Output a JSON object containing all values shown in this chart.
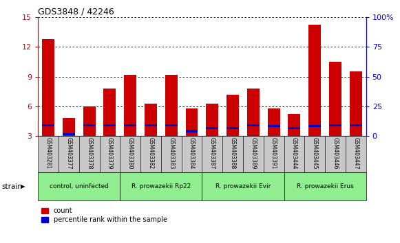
{
  "title": "GDS3848 / 42246",
  "samples": [
    "GSM403281",
    "GSM403377",
    "GSM403378",
    "GSM403379",
    "GSM403380",
    "GSM403382",
    "GSM403383",
    "GSM403384",
    "GSM403387",
    "GSM403388",
    "GSM403389",
    "GSM403391",
    "GSM403444",
    "GSM403445",
    "GSM403446",
    "GSM403447"
  ],
  "red_values": [
    12.8,
    4.8,
    6.0,
    7.8,
    9.2,
    6.3,
    9.2,
    5.8,
    6.3,
    7.2,
    7.8,
    5.8,
    5.2,
    14.2,
    10.5,
    9.5
  ],
  "blue_values": [
    4.1,
    3.2,
    4.1,
    4.1,
    4.1,
    4.1,
    4.1,
    3.5,
    3.8,
    3.8,
    4.1,
    4.0,
    3.8,
    4.0,
    4.1,
    4.1
  ],
  "ylim_left": [
    3,
    15
  ],
  "ylim_right": [
    0,
    100
  ],
  "yticks_left": [
    3,
    6,
    9,
    12,
    15
  ],
  "yticks_right": [
    0,
    25,
    50,
    75,
    100
  ],
  "ytick_right_labels": [
    "0",
    "25",
    "50",
    "75",
    "100%"
  ],
  "bar_width": 0.6,
  "red_color": "#CC0000",
  "blue_color": "#0000CC",
  "axis_color_left": "#CC0000",
  "axis_color_right": "#0000CC",
  "tick_label_bg": "#C8C8C8",
  "group_color": "#90EE90",
  "group_labels": [
    "control, uninfected",
    "R. prowazekii Rp22",
    "R. prowazekii Evir",
    "R. prowazekii Erus"
  ],
  "group_ranges": [
    [
      0,
      4
    ],
    [
      4,
      8
    ],
    [
      8,
      12
    ],
    [
      12,
      16
    ]
  ],
  "strain_label": "strain",
  "legend_count": "count",
  "legend_percentile": "percentile rank within the sample",
  "blue_bar_height": 0.22
}
